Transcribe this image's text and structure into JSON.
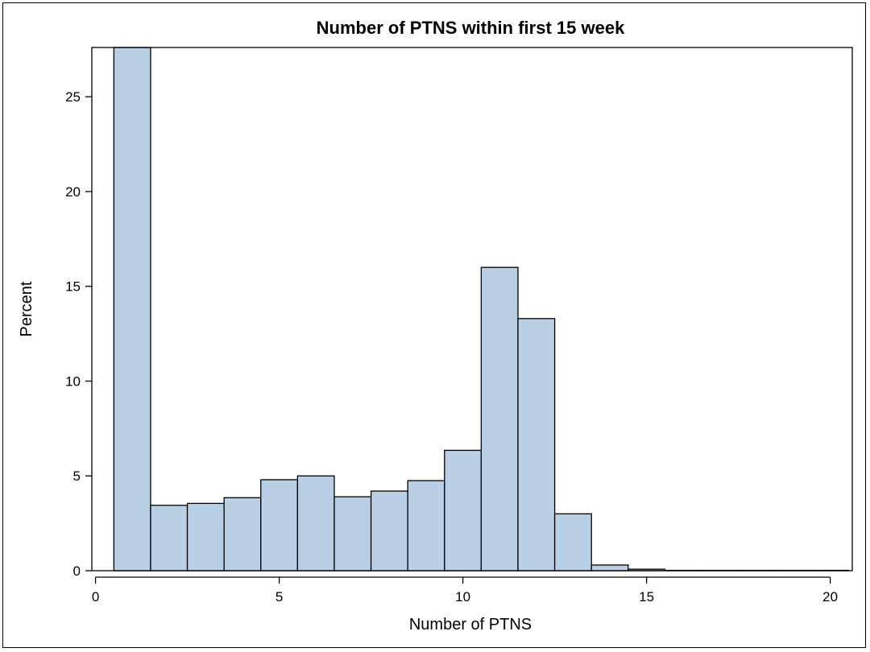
{
  "chart_data": {
    "type": "bar",
    "title": "Number of PTNS within first 15 week",
    "xlabel": "Number of PTNS",
    "ylabel": "Percent",
    "xlim": [
      -0.1,
      20.6
    ],
    "ylim": [
      0,
      27.6
    ],
    "xticks": [
      0,
      5,
      10,
      15,
      20
    ],
    "yticks": [
      0,
      5,
      10,
      15,
      20,
      25
    ],
    "bin_width": 1,
    "bar_color": "#b9cfe6",
    "grid": false,
    "legend": "none",
    "bins": [
      {
        "center": 1,
        "value": 27.6
      },
      {
        "center": 2,
        "value": 3.45
      },
      {
        "center": 3,
        "value": 3.55
      },
      {
        "center": 4,
        "value": 3.85
      },
      {
        "center": 5,
        "value": 4.8
      },
      {
        "center": 6,
        "value": 5.0
      },
      {
        "center": 7,
        "value": 3.9
      },
      {
        "center": 8,
        "value": 4.2
      },
      {
        "center": 9,
        "value": 4.75
      },
      {
        "center": 10,
        "value": 6.35
      },
      {
        "center": 11,
        "value": 16.0
      },
      {
        "center": 12,
        "value": 13.3
      },
      {
        "center": 13,
        "value": 3.0
      },
      {
        "center": 14,
        "value": 0.3
      },
      {
        "center": 15,
        "value": 0.08
      },
      {
        "center": 16,
        "value": 0.02
      },
      {
        "center": 17,
        "value": 0.02
      },
      {
        "center": 18,
        "value": 0.02
      },
      {
        "center": 19,
        "value": 0.02
      },
      {
        "center": 20,
        "value": 0.02
      }
    ]
  }
}
